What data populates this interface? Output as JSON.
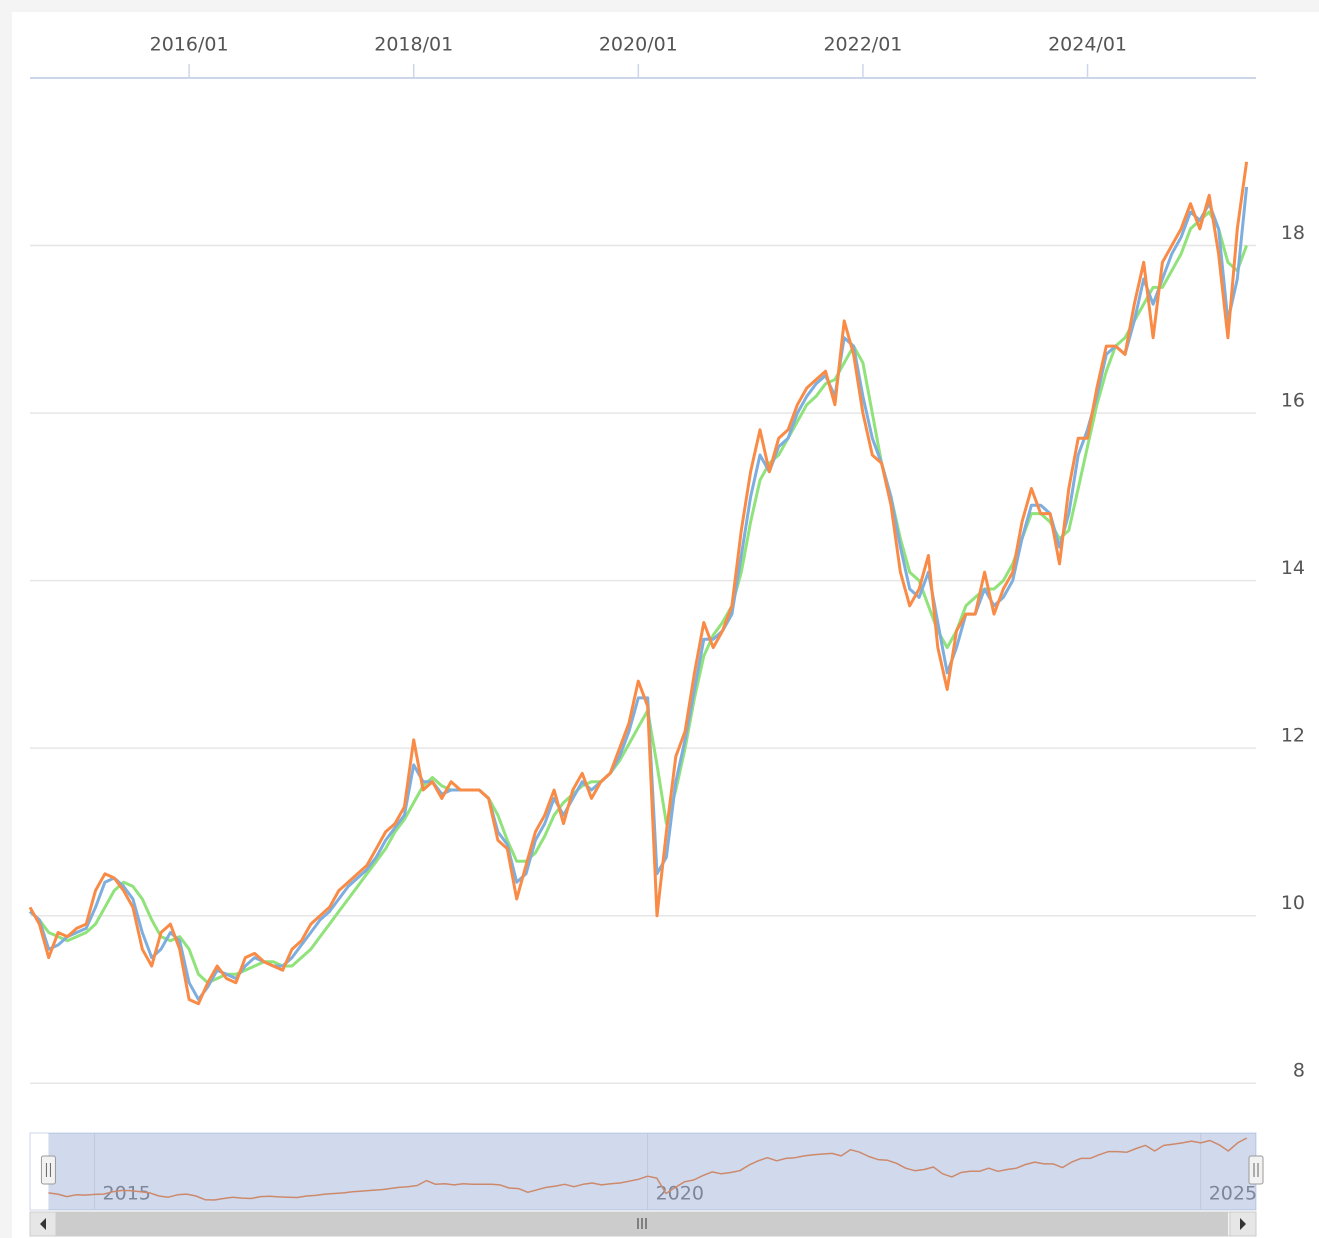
{
  "chart_data": {
    "type": "line",
    "x": [
      "2014-08",
      "2014-09",
      "2014-10",
      "2014-11",
      "2014-12",
      "2015-01",
      "2015-02",
      "2015-03",
      "2015-04",
      "2015-05",
      "2015-06",
      "2015-07",
      "2015-08",
      "2015-09",
      "2015-10",
      "2015-11",
      "2015-12",
      "2016-01",
      "2016-02",
      "2016-03",
      "2016-04",
      "2016-05",
      "2016-06",
      "2016-07",
      "2016-08",
      "2016-09",
      "2016-10",
      "2016-11",
      "2016-12",
      "2017-01",
      "2017-02",
      "2017-03",
      "2017-04",
      "2017-05",
      "2017-06",
      "2017-07",
      "2017-08",
      "2017-09",
      "2017-10",
      "2017-11",
      "2017-12",
      "2018-01",
      "2018-02",
      "2018-03",
      "2018-04",
      "2018-05",
      "2018-06",
      "2018-07",
      "2018-08",
      "2018-09",
      "2018-10",
      "2018-11",
      "2018-12",
      "2019-01",
      "2019-02",
      "2019-03",
      "2019-04",
      "2019-05",
      "2019-06",
      "2019-07",
      "2019-08",
      "2019-09",
      "2019-10",
      "2019-11",
      "2019-12",
      "2020-01",
      "2020-02",
      "2020-03",
      "2020-04",
      "2020-05",
      "2020-06",
      "2020-07",
      "2020-08",
      "2020-09",
      "2020-10",
      "2020-11",
      "2020-12",
      "2021-01",
      "2021-02",
      "2021-03",
      "2021-04",
      "2021-05",
      "2021-06",
      "2021-07",
      "2021-08",
      "2021-09",
      "2021-10",
      "2021-11",
      "2021-12",
      "2022-01",
      "2022-02",
      "2022-03",
      "2022-04",
      "2022-05",
      "2022-06",
      "2022-07",
      "2022-08",
      "2022-09",
      "2022-10",
      "2022-11",
      "2022-12",
      "2023-01",
      "2023-02",
      "2023-03",
      "2023-04",
      "2023-05",
      "2023-06",
      "2023-07",
      "2023-08",
      "2023-09",
      "2023-10",
      "2023-11",
      "2023-12",
      "2024-01",
      "2024-02",
      "2024-03",
      "2024-04",
      "2024-05",
      "2024-06",
      "2024-07",
      "2024-08",
      "2024-09",
      "2024-10",
      "2024-11",
      "2024-12",
      "2025-01",
      "2025-02",
      "2025-03",
      "2025-04",
      "2025-05",
      "2025-06"
    ],
    "series": [
      {
        "color": "#f98b46",
        "values": [
          10.1,
          9.9,
          9.5,
          9.8,
          9.75,
          9.85,
          9.9,
          10.3,
          10.5,
          10.45,
          10.3,
          10.1,
          9.6,
          9.4,
          9.8,
          9.9,
          9.6,
          9.0,
          8.95,
          9.2,
          9.4,
          9.25,
          9.2,
          9.5,
          9.55,
          9.45,
          9.4,
          9.35,
          9.6,
          9.7,
          9.9,
          10.0,
          10.1,
          10.3,
          10.4,
          10.5,
          10.6,
          10.8,
          11.0,
          11.1,
          11.3,
          12.1,
          11.5,
          11.6,
          11.4,
          11.6,
          11.5,
          11.5,
          11.5,
          11.4,
          10.9,
          10.8,
          10.2,
          10.6,
          11.0,
          11.2,
          11.5,
          11.1,
          11.5,
          11.7,
          11.4,
          11.6,
          11.7,
          12.0,
          12.3,
          12.8,
          12.5,
          10.0,
          11.0,
          11.9,
          12.2,
          12.9,
          13.5,
          13.2,
          13.4,
          13.7,
          14.6,
          15.3,
          15.8,
          15.3,
          15.7,
          15.8,
          16.1,
          16.3,
          16.4,
          16.5,
          16.1,
          17.1,
          16.7,
          16.0,
          15.5,
          15.4,
          14.9,
          14.1,
          13.7,
          13.9,
          14.3,
          13.2,
          12.7,
          13.4,
          13.6,
          13.6,
          14.1,
          13.6,
          13.9,
          14.1,
          14.7,
          15.1,
          14.8,
          14.8,
          14.2,
          15.1,
          15.7,
          15.7,
          16.3,
          16.8,
          16.8,
          16.7,
          17.3,
          17.8,
          16.9,
          17.8,
          18.0,
          18.2,
          18.5,
          18.2,
          18.6,
          17.9,
          16.9,
          18.2,
          19.0
        ]
      },
      {
        "color": "#7daee0",
        "values": [
          10.05,
          9.95,
          9.6,
          9.65,
          9.75,
          9.8,
          9.85,
          10.1,
          10.4,
          10.45,
          10.35,
          10.2,
          9.8,
          9.5,
          9.6,
          9.8,
          9.7,
          9.2,
          9.0,
          9.15,
          9.35,
          9.3,
          9.25,
          9.4,
          9.5,
          9.45,
          9.4,
          9.4,
          9.5,
          9.65,
          9.8,
          9.95,
          10.05,
          10.2,
          10.35,
          10.45,
          10.55,
          10.7,
          10.9,
          11.05,
          11.2,
          11.8,
          11.6,
          11.6,
          11.45,
          11.5,
          11.5,
          11.5,
          11.5,
          11.4,
          11.0,
          10.85,
          10.4,
          10.5,
          10.9,
          11.1,
          11.4,
          11.2,
          11.4,
          11.6,
          11.5,
          11.6,
          11.7,
          11.9,
          12.2,
          12.6,
          12.6,
          10.5,
          10.7,
          11.6,
          12.1,
          12.7,
          13.3,
          13.3,
          13.4,
          13.6,
          14.3,
          15.0,
          15.5,
          15.3,
          15.6,
          15.7,
          16.0,
          16.2,
          16.35,
          16.45,
          16.2,
          16.9,
          16.8,
          16.2,
          15.7,
          15.4,
          15.0,
          14.4,
          13.9,
          13.8,
          14.1,
          13.5,
          12.9,
          13.2,
          13.6,
          13.6,
          13.9,
          13.7,
          13.8,
          14.0,
          14.5,
          14.9,
          14.9,
          14.8,
          14.4,
          14.8,
          15.5,
          15.8,
          16.2,
          16.7,
          16.8,
          16.7,
          17.1,
          17.6,
          17.3,
          17.6,
          17.9,
          18.1,
          18.4,
          18.3,
          18.5,
          18.2,
          17.1,
          17.6,
          18.7
        ]
      },
      {
        "color": "#90e27a",
        "values": [
          10.05,
          9.95,
          9.8,
          9.75,
          9.7,
          9.75,
          9.8,
          9.9,
          10.1,
          10.3,
          10.4,
          10.35,
          10.2,
          9.95,
          9.75,
          9.7,
          9.75,
          9.6,
          9.3,
          9.2,
          9.25,
          9.3,
          9.3,
          9.35,
          9.4,
          9.45,
          9.45,
          9.4,
          9.4,
          9.5,
          9.6,
          9.75,
          9.9,
          10.05,
          10.2,
          10.35,
          10.5,
          10.65,
          10.8,
          11.0,
          11.15,
          11.35,
          11.55,
          11.65,
          11.55,
          11.5,
          11.5,
          11.5,
          11.5,
          11.4,
          11.2,
          10.9,
          10.65,
          10.65,
          10.75,
          10.95,
          11.2,
          11.35,
          11.45,
          11.55,
          11.6,
          11.6,
          11.7,
          11.85,
          12.05,
          12.25,
          12.45,
          11.8,
          11.1,
          11.5,
          12.0,
          12.6,
          13.1,
          13.35,
          13.5,
          13.7,
          14.1,
          14.7,
          15.2,
          15.4,
          15.5,
          15.7,
          15.9,
          16.1,
          16.2,
          16.35,
          16.4,
          16.6,
          16.8,
          16.6,
          16.0,
          15.4,
          15.0,
          14.5,
          14.1,
          14.0,
          13.7,
          13.4,
          13.2,
          13.4,
          13.7,
          13.8,
          13.9,
          13.9,
          14.0,
          14.2,
          14.5,
          14.8,
          14.8,
          14.7,
          14.5,
          14.6,
          15.1,
          15.6,
          16.1,
          16.5,
          16.8,
          16.9,
          17.1,
          17.3,
          17.5,
          17.5,
          17.7,
          17.9,
          18.2,
          18.3,
          18.4,
          18.2,
          17.8,
          17.7,
          18.0
        ]
      }
    ],
    "xlim": [
      "2014-08",
      "2025-07"
    ],
    "xticks": [
      {
        "value": "2016-01",
        "label": "2016/01"
      },
      {
        "value": "2018-01",
        "label": "2018/01"
      },
      {
        "value": "2020-01",
        "label": "2020/01"
      },
      {
        "value": "2022-01",
        "label": "2022/01"
      },
      {
        "value": "2024-01",
        "label": "2024/01"
      }
    ],
    "ylim": [
      7.8,
      20
    ],
    "yticks": [
      8,
      10,
      12,
      14,
      16,
      18
    ],
    "grid": true,
    "navigator_xlim": [
      "2014-06",
      "2025-07"
    ],
    "navigator_xticks": [
      2015,
      2020,
      2025
    ]
  }
}
